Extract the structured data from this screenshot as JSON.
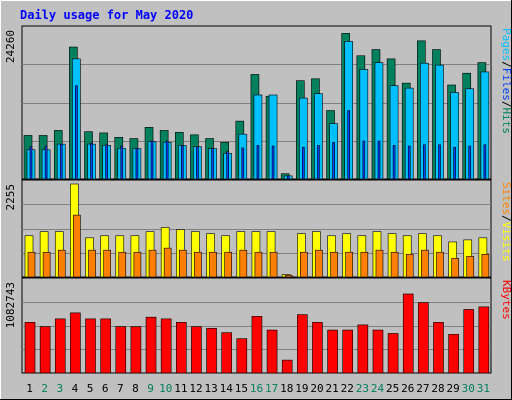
{
  "title": "Daily usage for May 2020",
  "colors": {
    "background": "#c0c0c0",
    "title": "#0000ff",
    "hits": "#00805c",
    "files": "#00c0ff",
    "pages": "#0040ff",
    "visits": "#ffff00",
    "sites": "#ff8000",
    "kbytes": "#ff0000",
    "weekday_label": "#000000",
    "weekend_label": "#00805c",
    "grid": "#808080"
  },
  "chart_data": [
    {
      "type": "bar",
      "panel": "top",
      "ymax_label": "24260",
      "ylim": [
        0,
        24260
      ],
      "right_label": {
        "parts": [
          "Pages",
          "/",
          "Files",
          "/",
          "Hits"
        ]
      },
      "x": [
        1,
        2,
        3,
        4,
        5,
        6,
        7,
        8,
        9,
        10,
        11,
        12,
        13,
        14,
        15,
        16,
        17,
        18,
        19,
        20,
        21,
        22,
        23,
        24,
        25,
        26,
        27,
        28,
        29,
        30,
        31
      ],
      "series": [
        {
          "name": "Hits",
          "values": [
            7000,
            7000,
            7800,
            21200,
            7600,
            7400,
            6700,
            6500,
            8300,
            7800,
            7500,
            7100,
            6500,
            5900,
            9300,
            16800,
            13300,
            850,
            15800,
            16100,
            11000,
            23400,
            19800,
            20800,
            19300,
            15400,
            22200,
            20800,
            15100,
            17000,
            18700
          ]
        },
        {
          "name": "Files",
          "values": [
            4700,
            4700,
            5600,
            19300,
            5600,
            5400,
            4900,
            4900,
            6000,
            5900,
            5400,
            5200,
            4900,
            4100,
            7200,
            13500,
            13500,
            500,
            13000,
            13700,
            8900,
            22100,
            17600,
            18700,
            15000,
            14600,
            18600,
            18300,
            13900,
            14500,
            17200
          ]
        },
        {
          "name": "Pages",
          "values": [
            5200,
            5300,
            5600,
            15000,
            5800,
            5500,
            5300,
            4900,
            6100,
            6100,
            5400,
            5200,
            4900,
            4400,
            5000,
            5400,
            5300,
            500,
            5100,
            5400,
            5900,
            11000,
            6100,
            6100,
            5400,
            5300,
            5500,
            5500,
            5100,
            5300,
            5500
          ]
        }
      ]
    },
    {
      "type": "bar",
      "panel": "middle",
      "ymax_label": "2255",
      "ylim": [
        0,
        2255
      ],
      "right_label": {
        "parts": [
          "Sites",
          "/",
          "Visits"
        ]
      },
      "x": [
        1,
        2,
        3,
        4,
        5,
        6,
        7,
        8,
        9,
        10,
        11,
        12,
        13,
        14,
        15,
        16,
        17,
        18,
        19,
        20,
        21,
        22,
        23,
        24,
        25,
        26,
        27,
        28,
        29,
        30,
        31
      ],
      "series": [
        {
          "name": "Visits",
          "values": [
            1000,
            1100,
            1100,
            2255,
            950,
            1000,
            1000,
            1000,
            1100,
            1200,
            1150,
            1100,
            1050,
            1000,
            1100,
            1100,
            1100,
            60,
            1050,
            1100,
            1000,
            1050,
            1000,
            1100,
            1050,
            1000,
            1050,
            1000,
            850,
            900,
            950
          ]
        },
        {
          "name": "Sites",
          "values": [
            600,
            600,
            650,
            1500,
            650,
            650,
            600,
            600,
            650,
            700,
            650,
            600,
            600,
            600,
            650,
            600,
            600,
            40,
            600,
            650,
            600,
            600,
            600,
            650,
            600,
            550,
            650,
            600,
            450,
            500,
            550
          ]
        }
      ]
    },
    {
      "type": "bar",
      "panel": "bottom",
      "ymax_label": "1082743",
      "ylim": [
        0,
        1082743
      ],
      "right_label": {
        "parts": [
          "KBytes"
        ]
      },
      "x": [
        1,
        2,
        3,
        4,
        5,
        6,
        7,
        8,
        9,
        10,
        11,
        12,
        13,
        14,
        15,
        16,
        17,
        18,
        19,
        20,
        21,
        22,
        23,
        24,
        25,
        26,
        27,
        28,
        29,
        30,
        31
      ],
      "series": [
        {
          "name": "KBytes",
          "values": [
            590000,
            540000,
            630000,
            700000,
            630000,
            630000,
            540000,
            540000,
            650000,
            630000,
            590000,
            540000,
            520000,
            470000,
            400000,
            660000,
            500000,
            150000,
            680000,
            590000,
            500000,
            500000,
            560000,
            500000,
            460000,
            920000,
            820000,
            590000,
            450000,
            740000,
            770000
          ]
        }
      ]
    }
  ],
  "x_labels": [
    "1",
    "2",
    "3",
    "4",
    "5",
    "6",
    "7",
    "8",
    "9",
    "10",
    "11",
    "12",
    "13",
    "14",
    "15",
    "16",
    "17",
    "18",
    "19",
    "20",
    "21",
    "22",
    "23",
    "24",
    "25",
    "26",
    "27",
    "28",
    "29",
    "30",
    "31"
  ],
  "weekend_days": [
    2,
    3,
    9,
    10,
    16,
    17,
    23,
    24,
    30,
    31
  ]
}
